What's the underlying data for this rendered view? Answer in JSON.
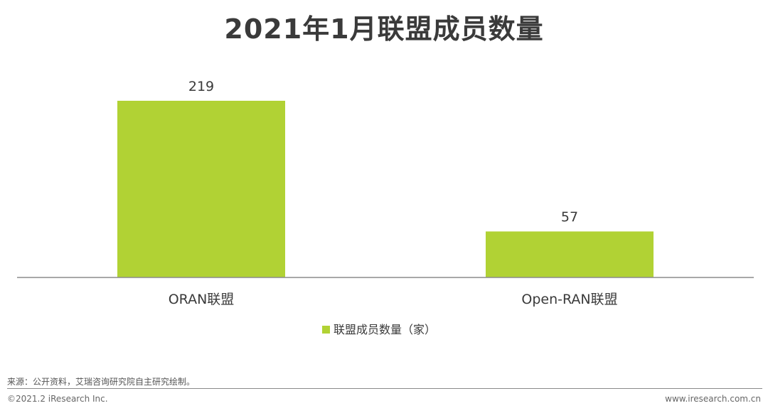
{
  "title": "2021年1月联盟成员数量",
  "chart_data": {
    "type": "bar",
    "categories": [
      "ORAN联盟",
      "Open-RAN联盟"
    ],
    "series": [
      {
        "name": "联盟成员数量（家）",
        "values": [
          219,
          57
        ],
        "color": "#b1d234"
      }
    ],
    "data_labels": [
      "219",
      "57"
    ],
    "ylim": [
      0,
      219
    ],
    "grid": false,
    "legend": "bottom"
  },
  "footer": {
    "source": "来源：公开资料，艾瑞咨询研究院自主研究绘制。",
    "copyright": "©2021.2 iResearch Inc.",
    "site": "www.iresearch.com.cn"
  }
}
